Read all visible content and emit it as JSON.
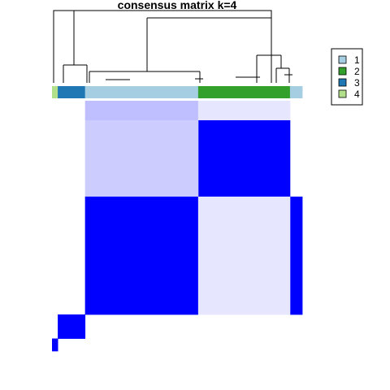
{
  "chart_data": {
    "type": "heatmap",
    "title": "consensus matrix k=4",
    "legend": {
      "placement": "right",
      "entries": [
        {
          "label": "1",
          "color": "#a6cee3"
        },
        {
          "label": "2",
          "color": "#33a02c"
        },
        {
          "label": "3",
          "color": "#1f78b4"
        },
        {
          "label": "4",
          "color": "#b2df8a"
        }
      ]
    },
    "low_color": "#ffffff",
    "high_color": "#0000ff",
    "value_range": [
      0,
      1
    ],
    "column_order": [
      "4",
      "3",
      "1",
      "2",
      "1"
    ],
    "column_group_proportions": [
      0.023,
      0.109,
      0.452,
      0.367,
      0.049
    ],
    "row_block_order": [
      "1",
      "2",
      "1",
      "3",
      "4"
    ],
    "row_block_proportions": [
      0.078,
      0.305,
      0.471,
      0.096,
      0.037
    ],
    "consensus_blocks": [
      {
        "rows": "1",
        "cols": "1",
        "value": 0.25
      },
      {
        "rows": "1",
        "cols": "2",
        "value": 0.1
      },
      {
        "rows": "2",
        "cols": "2",
        "value": 1.0
      },
      {
        "rows": "2",
        "cols": "1",
        "value": 0.2
      },
      {
        "rows": "1",
        "cols": "1",
        "value": 1.0
      },
      {
        "rows": "1",
        "cols": "2",
        "value": 0.1
      },
      {
        "rows": "3",
        "cols": "3",
        "value": 1.0
      },
      {
        "rows": "4",
        "cols": "4",
        "value": 1.0
      }
    ]
  }
}
